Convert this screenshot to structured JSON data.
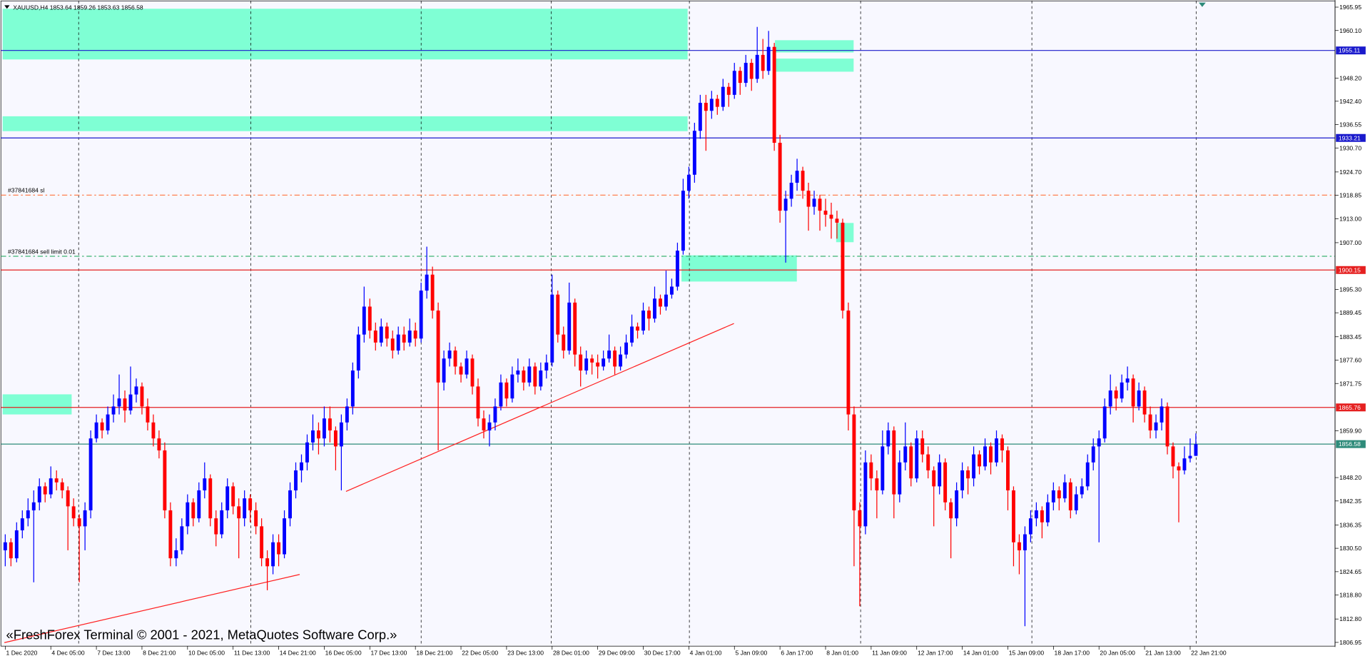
{
  "header": {
    "symbol_line": "XAUUSD,H4  1853.64 1859.26 1853.63 1856.58"
  },
  "footer": {
    "watermark": "«FreshForex Terminal © 2001 - 2021, MetaQuotes Software Corp.»"
  },
  "chart_data": {
    "type": "candlestick",
    "colors": {
      "up": "#0000ff",
      "down": "#ff0000"
    },
    "ylim": [
      1806.23,
      1967.3
    ],
    "yticks": [
      1965.95,
      {
        "value": 1960.1,
        "label": "1960.10"
      },
      {
        "value": 1948.2,
        "label": "1948.20"
      },
      {
        "value": 1942.4,
        "label": "1942.40"
      },
      1936.55,
      {
        "value": 1930.7,
        "label": "1930.70"
      },
      {
        "value": 1924.7,
        "label": "1924.70"
      },
      1918.85,
      {
        "value": 1913,
        "label": "1913.00"
      },
      {
        "value": 1907,
        "label": "1907.00"
      },
      {
        "value": 1895.3,
        "label": "1895.30"
      },
      1889.45,
      1883.45,
      {
        "value": 1877.6,
        "label": "1877.60"
      },
      1871.75,
      {
        "value": 1859.9,
        "label": "1859.90"
      },
      {
        "value": 1848.2,
        "label": "1848.20"
      },
      1842.35,
      1836.35,
      {
        "value": 1830.5,
        "label": "1830.50"
      },
      1824.65,
      {
        "value": 1818.8,
        "label": "1818.80"
      },
      {
        "value": 1812.8,
        "label": "1812.80"
      },
      1806.95
    ],
    "xticks": [
      {
        "value": 0,
        "label": "1 Dec 2020"
      },
      {
        "value": 8,
        "label": "4 Dec 05:00"
      },
      {
        "value": 16,
        "label": "7 Dec 13:00"
      },
      {
        "value": 24,
        "label": "8 Dec 21:00"
      },
      {
        "value": 32,
        "label": "10 Dec 05:00"
      },
      {
        "value": 40,
        "label": "11 Dec 13:00"
      },
      {
        "value": 48,
        "label": "14 Dec 21:00"
      },
      {
        "value": 56,
        "label": "16 Dec 05:00"
      },
      {
        "value": 64,
        "label": "17 Dec 13:00"
      },
      {
        "value": 72,
        "label": "18 Dec 21:00"
      },
      {
        "value": 80,
        "label": "22 Dec 05:00"
      },
      {
        "value": 88,
        "label": "23 Dec 13:00"
      },
      {
        "value": 96,
        "label": "28 Dec 01:00"
      },
      {
        "value": 104,
        "label": "29 Dec 09:00"
      },
      {
        "value": 112,
        "label": "30 Dec 17:00"
      },
      {
        "value": 120,
        "label": "4 Jan 01:00"
      },
      {
        "value": 128,
        "label": "5 Jan 09:00"
      },
      {
        "value": 136,
        "label": "6 Jan 17:00"
      },
      {
        "value": 144,
        "label": "8 Jan 01:00"
      },
      {
        "value": 152,
        "label": "11 Jan 09:00"
      },
      {
        "value": 160,
        "label": "12 Jan 17:00"
      },
      {
        "value": 168,
        "label": "14 Jan 01:00"
      },
      {
        "value": 176,
        "label": "15 Jan 09:00"
      },
      {
        "value": 184,
        "label": "18 Jan 17:00"
      },
      {
        "value": 192,
        "label": "20 Jan 05:00"
      },
      {
        "value": 200,
        "label": "21 Jan 13:00"
      },
      {
        "value": 208,
        "label": "22 Jan 21:00"
      }
    ],
    "price_lines": [
      {
        "value": 1955.11,
        "color": "#1a1acc"
      },
      {
        "value": 1933.21,
        "color": "#1a1acc"
      },
      {
        "value": 1900.15,
        "color": "#e52020"
      },
      {
        "value": 1865.76,
        "color": "#e52020"
      },
      {
        "value": 1856.58,
        "color": "#2e8b7a"
      }
    ],
    "order_lines": [
      {
        "label": "#37841684 sl",
        "value": 1918.9,
        "color": "#ff7f50"
      },
      {
        "label": "#37841684 sell limit 0.01",
        "value": 1903.6,
        "color": "#3cb371"
      }
    ],
    "candles": [
      [
        1830,
        1834,
        1826,
        1832
      ],
      [
        1832,
        1833,
        1826,
        1828
      ],
      [
        1828,
        1837,
        1827,
        1835
      ],
      [
        1835,
        1840,
        1833,
        1838
      ],
      [
        1838,
        1843,
        1836,
        1840
      ],
      [
        1840,
        1845,
        1822,
        1842
      ],
      [
        1842,
        1848,
        1840,
        1846
      ],
      [
        1846,
        1847,
        1842,
        1844
      ],
      [
        1844,
        1851,
        1843,
        1848
      ],
      [
        1848,
        1850,
        1845,
        1847
      ],
      [
        1847,
        1848,
        1843,
        1845
      ],
      [
        1845,
        1846,
        1830,
        1841
      ],
      [
        1841,
        1843,
        1836,
        1838
      ],
      [
        1838,
        1839,
        1822,
        1836
      ],
      [
        1836,
        1842,
        1830,
        1840
      ],
      [
        1840,
        1860,
        1838,
        1858
      ],
      [
        1858,
        1864,
        1857,
        1862
      ],
      [
        1862,
        1863,
        1858,
        1860
      ],
      [
        1860,
        1866,
        1859,
        1864
      ],
      [
        1864,
        1869,
        1862,
        1866
      ],
      [
        1866,
        1874,
        1864,
        1868
      ],
      [
        1868,
        1870,
        1862,
        1865
      ],
      [
        1865,
        1876,
        1864,
        1869
      ],
      [
        1869,
        1873,
        1867,
        1871
      ],
      [
        1871,
        1872,
        1864,
        1866
      ],
      [
        1866,
        1868,
        1860,
        1862
      ],
      [
        1862,
        1864,
        1856,
        1858
      ],
      [
        1858,
        1860,
        1853,
        1855
      ],
      [
        1855,
        1857,
        1838,
        1840
      ],
      [
        1840,
        1842,
        1826,
        1828
      ],
      [
        1828,
        1833,
        1826,
        1830
      ],
      [
        1830,
        1838,
        1829,
        1836
      ],
      [
        1836,
        1844,
        1834,
        1842
      ],
      [
        1842,
        1843,
        1836,
        1838
      ],
      [
        1838,
        1847,
        1837,
        1845
      ],
      [
        1845,
        1852,
        1843,
        1848
      ],
      [
        1848,
        1849,
        1836,
        1838
      ],
      [
        1838,
        1840,
        1831,
        1834
      ],
      [
        1834,
        1842,
        1833,
        1840
      ],
      [
        1840,
        1848,
        1838,
        1846
      ],
      [
        1846,
        1847,
        1839,
        1841
      ],
      [
        1841,
        1843,
        1828,
        1838
      ],
      [
        1838,
        1845,
        1836,
        1843
      ],
      [
        1843,
        1844,
        1837,
        1840
      ],
      [
        1840,
        1842,
        1834,
        1836
      ],
      [
        1836,
        1838,
        1826,
        1828
      ],
      [
        1828,
        1830,
        1820,
        1826
      ],
      [
        1826,
        1834,
        1824,
        1832
      ],
      [
        1832,
        1834,
        1826,
        1829
      ],
      [
        1829,
        1840,
        1828,
        1838
      ],
      [
        1838,
        1847,
        1836,
        1845
      ],
      [
        1845,
        1852,
        1843,
        1850
      ],
      [
        1850,
        1854,
        1847,
        1852
      ],
      [
        1852,
        1859,
        1850,
        1857
      ],
      [
        1857,
        1864,
        1855,
        1860
      ],
      [
        1860,
        1862,
        1854,
        1858
      ],
      [
        1858,
        1866,
        1856,
        1863
      ],
      [
        1863,
        1866,
        1857,
        1860
      ],
      [
        1860,
        1861,
        1850,
        1856
      ],
      [
        1856,
        1864,
        1845,
        1862
      ],
      [
        1862,
        1868,
        1860,
        1866
      ],
      [
        1866,
        1877,
        1864,
        1875
      ],
      [
        1875,
        1886,
        1873,
        1884
      ],
      [
        1884,
        1896,
        1882,
        1891
      ],
      [
        1891,
        1893,
        1883,
        1885
      ],
      [
        1885,
        1887,
        1880,
        1882
      ],
      [
        1882,
        1888,
        1881,
        1886
      ],
      [
        1886,
        1887,
        1881,
        1883
      ],
      [
        1883,
        1885,
        1878,
        1880
      ],
      [
        1880,
        1886,
        1879,
        1884
      ],
      [
        1884,
        1886,
        1880,
        1882
      ],
      [
        1882,
        1888,
        1881,
        1885
      ],
      [
        1885,
        1887,
        1881,
        1883
      ],
      [
        1883,
        1897,
        1882,
        1895
      ],
      [
        1895,
        1906,
        1893,
        1899
      ],
      [
        1899,
        1901,
        1888,
        1890
      ],
      [
        1890,
        1892,
        1855,
        1872
      ],
      [
        1872,
        1880,
        1870,
        1878
      ],
      [
        1878,
        1882,
        1876,
        1880
      ],
      [
        1880,
        1881,
        1874,
        1876
      ],
      [
        1876,
        1877,
        1872,
        1874
      ],
      [
        1874,
        1880,
        1873,
        1878
      ],
      [
        1878,
        1879,
        1869,
        1871
      ],
      [
        1871,
        1873,
        1861,
        1863
      ],
      [
        1863,
        1865,
        1858,
        1860
      ],
      [
        1860,
        1864,
        1856,
        1862
      ],
      [
        1862,
        1868,
        1860,
        1866
      ],
      [
        1866,
        1874,
        1865,
        1872
      ],
      [
        1872,
        1873,
        1866,
        1868
      ],
      [
        1868,
        1876,
        1867,
        1874
      ],
      [
        1874,
        1878,
        1872,
        1875
      ],
      [
        1875,
        1876,
        1870,
        1872
      ],
      [
        1872,
        1878,
        1871,
        1876
      ],
      [
        1876,
        1877,
        1869,
        1871
      ],
      [
        1871,
        1877,
        1870,
        1875
      ],
      [
        1875,
        1879,
        1873,
        1877
      ],
      [
        1877,
        1899,
        1876,
        1894
      ],
      [
        1894,
        1895,
        1882,
        1884
      ],
      [
        1884,
        1886,
        1878,
        1880
      ],
      [
        1880,
        1897,
        1879,
        1892
      ],
      [
        1892,
        1893,
        1876,
        1879
      ],
      [
        1879,
        1881,
        1871,
        1875
      ],
      [
        1875,
        1880,
        1874,
        1878
      ],
      [
        1878,
        1879,
        1874,
        1877
      ],
      [
        1877,
        1879,
        1873,
        1876
      ],
      [
        1876,
        1880,
        1875,
        1878
      ],
      [
        1878,
        1884,
        1877,
        1880
      ],
      [
        1880,
        1881,
        1874,
        1876
      ],
      [
        1876,
        1881,
        1875,
        1879
      ],
      [
        1879,
        1884,
        1878,
        1882
      ],
      [
        1882,
        1889,
        1881,
        1886
      ],
      [
        1886,
        1887,
        1883,
        1885
      ],
      [
        1885,
        1892,
        1884,
        1890
      ],
      [
        1890,
        1891,
        1885,
        1888
      ],
      [
        1888,
        1896,
        1887,
        1893
      ],
      [
        1893,
        1894,
        1889,
        1891
      ],
      [
        1891,
        1900,
        1890,
        1894
      ],
      [
        1894,
        1898,
        1893,
        1896
      ],
      [
        1896,
        1907,
        1895,
        1905
      ],
      [
        1905,
        1923,
        1904,
        1920
      ],
      [
        1920,
        1926,
        1918,
        1924
      ],
      [
        1924,
        1937,
        1922,
        1935
      ],
      [
        1935,
        1944,
        1933,
        1942
      ],
      [
        1942,
        1944,
        1930,
        1940
      ],
      [
        1940,
        1945,
        1938,
        1943
      ],
      [
        1943,
        1944,
        1939,
        1941
      ],
      [
        1941,
        1948,
        1940,
        1946
      ],
      [
        1946,
        1947,
        1941,
        1944
      ],
      [
        1944,
        1952,
        1943,
        1950
      ],
      [
        1950,
        1951,
        1944,
        1947
      ],
      [
        1947,
        1954,
        1946,
        1952
      ],
      [
        1952,
        1953,
        1945,
        1948
      ],
      [
        1948,
        1961,
        1947,
        1954
      ],
      [
        1954,
        1958,
        1948,
        1950
      ],
      [
        1950,
        1960,
        1949,
        1956
      ],
      [
        1956,
        1957,
        1930,
        1932
      ],
      [
        1932,
        1934,
        1912,
        1915
      ],
      [
        1915,
        1920,
        1902,
        1918
      ],
      [
        1918,
        1924,
        1916,
        1922
      ],
      [
        1922,
        1928,
        1920,
        1925
      ],
      [
        1925,
        1926,
        1918,
        1920
      ],
      [
        1920,
        1922,
        1910,
        1916
      ],
      [
        1916,
        1920,
        1914,
        1918
      ],
      [
        1918,
        1919,
        1910,
        1915
      ],
      [
        1915,
        1918,
        1911,
        1914
      ],
      [
        1914,
        1917,
        1908,
        1913
      ],
      [
        1913,
        1915,
        1908,
        1912
      ],
      [
        1912,
        1913,
        1888,
        1890
      ],
      [
        1890,
        1892,
        1860,
        1864
      ],
      [
        1864,
        1866,
        1826,
        1840
      ],
      [
        1840,
        1842,
        1816,
        1836
      ],
      [
        1836,
        1855,
        1834,
        1852
      ],
      [
        1852,
        1854,
        1845,
        1848
      ],
      [
        1848,
        1850,
        1838,
        1845
      ],
      [
        1845,
        1860,
        1844,
        1856
      ],
      [
        1856,
        1862,
        1854,
        1860
      ],
      [
        1860,
        1861,
        1838,
        1844
      ],
      [
        1844,
        1855,
        1842,
        1852
      ],
      [
        1852,
        1862,
        1850,
        1856
      ],
      [
        1856,
        1857,
        1846,
        1848
      ],
      [
        1848,
        1860,
        1847,
        1858
      ],
      [
        1858,
        1860,
        1852,
        1854
      ],
      [
        1854,
        1856,
        1848,
        1850
      ],
      [
        1850,
        1851,
        1836,
        1846
      ],
      [
        1846,
        1854,
        1844,
        1852
      ],
      [
        1852,
        1853,
        1840,
        1842
      ],
      [
        1842,
        1843,
        1828,
        1838
      ],
      [
        1838,
        1847,
        1836,
        1845
      ],
      [
        1845,
        1852,
        1843,
        1850
      ],
      [
        1850,
        1851,
        1844,
        1848
      ],
      [
        1848,
        1856,
        1846,
        1854
      ],
      [
        1854,
        1855,
        1849,
        1851
      ],
      [
        1851,
        1858,
        1850,
        1856
      ],
      [
        1856,
        1857,
        1849,
        1852
      ],
      [
        1852,
        1860,
        1851,
        1858
      ],
      [
        1858,
        1859,
        1852,
        1855
      ],
      [
        1855,
        1856,
        1840,
        1845
      ],
      [
        1845,
        1846,
        1826,
        1832
      ],
      [
        1832,
        1834,
        1824,
        1830
      ],
      [
        1830,
        1836,
        1811,
        1834
      ],
      [
        1834,
        1840,
        1832,
        1838
      ],
      [
        1838,
        1842,
        1836,
        1840
      ],
      [
        1840,
        1841,
        1833,
        1837
      ],
      [
        1837,
        1844,
        1836,
        1842
      ],
      [
        1842,
        1847,
        1840,
        1845
      ],
      [
        1845,
        1846,
        1840,
        1843
      ],
      [
        1843,
        1849,
        1842,
        1847
      ],
      [
        1847,
        1848,
        1838,
        1840
      ],
      [
        1840,
        1846,
        1839,
        1844
      ],
      [
        1844,
        1848,
        1843,
        1846
      ],
      [
        1846,
        1854,
        1845,
        1852
      ],
      [
        1852,
        1858,
        1850,
        1856
      ],
      [
        1856,
        1860,
        1832,
        1858
      ],
      [
        1858,
        1868,
        1857,
        1866
      ],
      [
        1866,
        1874,
        1864,
        1870
      ],
      [
        1870,
        1871,
        1865,
        1868
      ],
      [
        1868,
        1874,
        1867,
        1872
      ],
      [
        1872,
        1876,
        1870,
        1873
      ],
      [
        1873,
        1874,
        1862,
        1866
      ],
      [
        1866,
        1872,
        1865,
        1870
      ],
      [
        1870,
        1871,
        1862,
        1864
      ],
      [
        1864,
        1866,
        1858,
        1860
      ],
      [
        1860,
        1864,
        1858,
        1862
      ],
      [
        1862,
        1868,
        1860,
        1866
      ],
      [
        1866,
        1867,
        1854,
        1856
      ],
      [
        1856,
        1857,
        1848,
        1851
      ],
      [
        1851,
        1852,
        1837,
        1850
      ],
      [
        1850,
        1856,
        1849,
        1853
      ],
      [
        1853,
        1858,
        1852,
        1853.64
      ],
      [
        1853.64,
        1859.26,
        1853.63,
        1856.58
      ]
    ]
  }
}
